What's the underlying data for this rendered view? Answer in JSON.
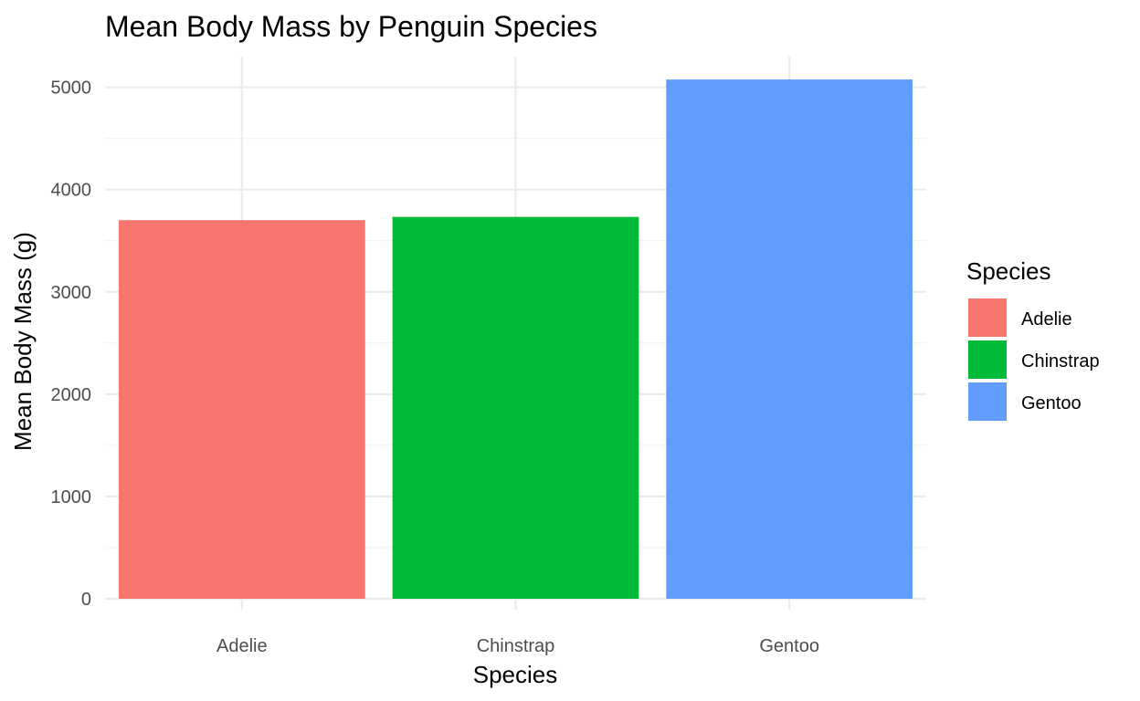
{
  "chart_data": {
    "type": "bar",
    "title": "Mean Body Mass by Penguin Species",
    "xlabel": "Species",
    "ylabel": "Mean Body Mass (g)",
    "categories": [
      "Adelie",
      "Chinstrap",
      "Gentoo"
    ],
    "values": [
      3701,
      3733,
      5076
    ],
    "colors": [
      "#F8766D",
      "#00BA38",
      "#619CFF"
    ],
    "ylim": [
      0,
      5300
    ],
    "yticks": [
      0,
      1000,
      2000,
      3000,
      4000,
      5000
    ],
    "ytick_labels": [
      "0",
      "1000",
      "2000",
      "3000",
      "4000",
      "5000"
    ],
    "grid": true,
    "legend": {
      "title": "Species",
      "placement": "right",
      "entries": [
        "Adelie",
        "Chinstrap",
        "Gentoo"
      ]
    }
  }
}
